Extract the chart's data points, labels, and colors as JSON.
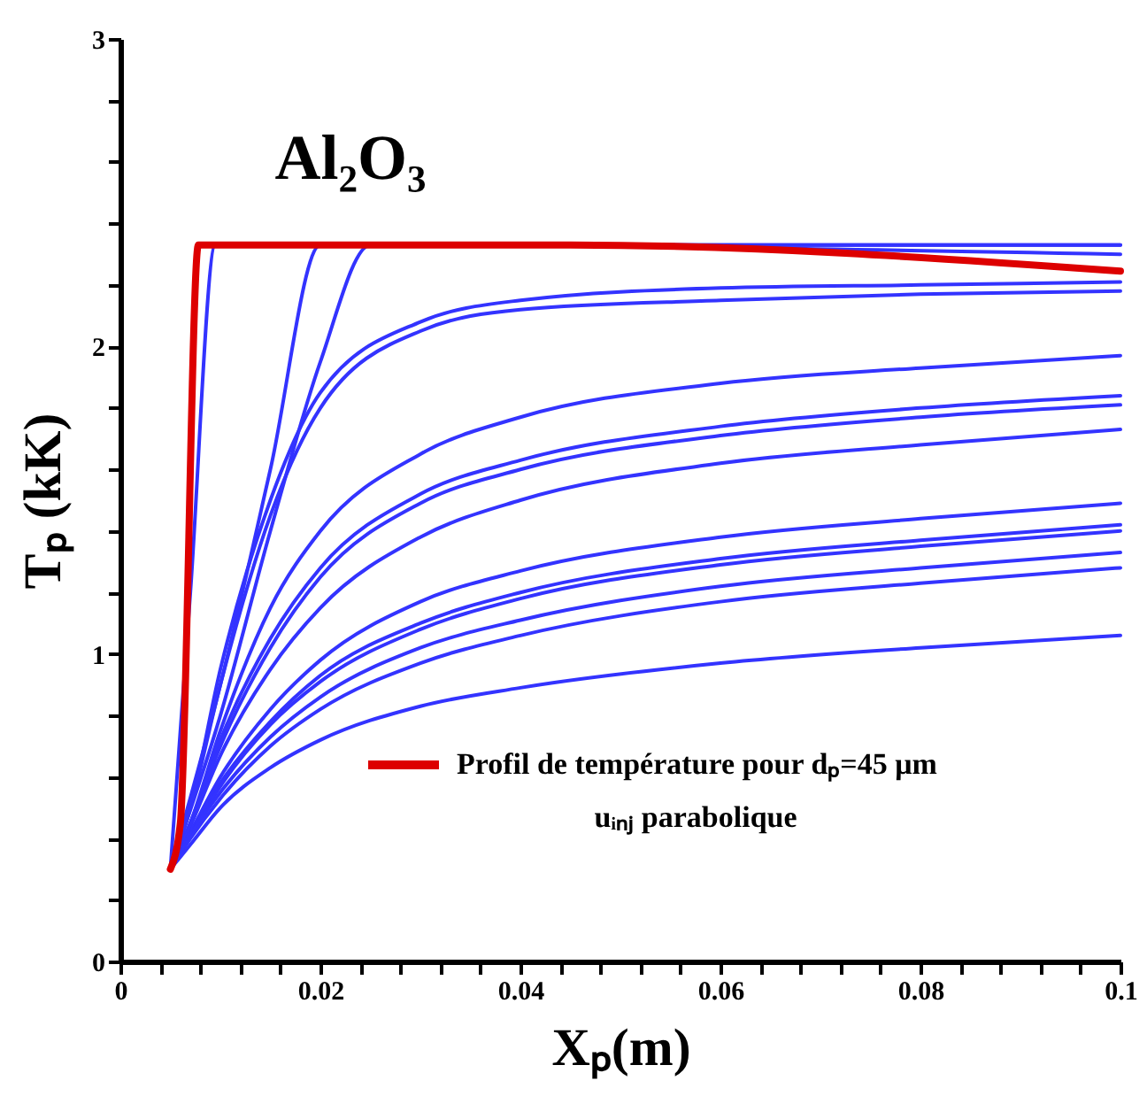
{
  "chart_data": {
    "type": "line",
    "title": "Al₂O₃",
    "xlabel": "Xₚ(m)",
    "ylabel": "Tₚ (kK)",
    "xlim": [
      0,
      0.1
    ],
    "ylim": [
      0,
      3
    ],
    "xticks": [
      0,
      {
        "value": 0.004,
        "label": null
      },
      {
        "value": 0.008,
        "label": null
      },
      {
        "value": 0.012,
        "label": null
      },
      {
        "value": 0.016,
        "label": null
      },
      0.02,
      {
        "value": 0.024,
        "label": null
      },
      {
        "value": 0.028,
        "label": null
      },
      {
        "value": 0.032,
        "label": null
      },
      {
        "value": 0.036,
        "label": null
      },
      0.04,
      {
        "value": 0.044,
        "label": null
      },
      {
        "value": 0.048,
        "label": null
      },
      {
        "value": 0.052,
        "label": null
      },
      {
        "value": 0.056,
        "label": null
      },
      0.06,
      {
        "value": 0.064,
        "label": null
      },
      {
        "value": 0.068,
        "label": null
      },
      {
        "value": 0.072,
        "label": null
      },
      {
        "value": 0.076,
        "label": null
      },
      0.08,
      {
        "value": 0.084,
        "label": null
      },
      {
        "value": 0.088,
        "label": null
      },
      {
        "value": 0.092,
        "label": null
      },
      {
        "value": 0.096,
        "label": null
      },
      0.1
    ],
    "yticks": [
      0,
      {
        "value": 0.2,
        "label": null
      },
      {
        "value": 0.4,
        "label": null
      },
      {
        "value": 0.6,
        "label": null
      },
      {
        "value": 0.8,
        "label": null
      },
      1,
      {
        "value": 1.2,
        "label": null
      },
      {
        "value": 1.4,
        "label": null
      },
      {
        "value": 1.6,
        "label": null
      },
      {
        "value": 1.8,
        "label": null
      },
      2,
      {
        "value": 2.2,
        "label": null
      },
      {
        "value": 2.4,
        "label": null
      },
      {
        "value": 2.6,
        "label": null
      },
      {
        "value": 2.8,
        "label": null
      },
      3
    ],
    "grid": false,
    "legend": "bottom right",
    "marker": "none",
    "line_style": "solid",
    "annotations": [
      "uᵢₙⱼ parabolique"
    ],
    "x": [
      0.005,
      0.007,
      0.01,
      0.015,
      0.02,
      0.03,
      0.04,
      0.06,
      0.08,
      0.1
    ],
    "series": [
      {
        "color": "#3333ff",
        "x": [
          0.005,
          0.007,
          0.0095,
          0.1
        ],
        "values": [
          0.3,
          1.2,
          2.33,
          2.33
        ]
      },
      {
        "color": "#3333ff",
        "x": [
          0.005,
          0.01,
          0.015,
          0.02,
          0.1
        ],
        "values": [
          0.3,
          0.9,
          1.6,
          2.33,
          2.33
        ]
      },
      {
        "color": "#3333ff",
        "x": [
          0.005,
          0.01,
          0.015,
          0.02,
          0.025,
          0.1
        ],
        "values": [
          0.3,
          0.8,
          1.4,
          1.95,
          2.33,
          2.3
        ]
      },
      {
        "color": "#3333ff",
        "values": [
          0.3,
          0.5,
          0.95,
          1.5,
          1.85,
          2.08,
          2.15,
          2.19,
          2.2,
          2.21
        ]
      },
      {
        "color": "#3333ff",
        "values": [
          0.3,
          0.5,
          0.9,
          1.45,
          1.8,
          2.05,
          2.12,
          2.15,
          2.17,
          2.18
        ]
      },
      {
        "color": "#3333ff",
        "values": [
          0.3,
          0.45,
          0.75,
          1.15,
          1.4,
          1.65,
          1.77,
          1.88,
          1.93,
          1.97
        ]
      },
      {
        "color": "#3333ff",
        "values": [
          0.3,
          0.45,
          0.72,
          1.05,
          1.28,
          1.52,
          1.63,
          1.74,
          1.8,
          1.84
        ]
      },
      {
        "color": "#3333ff",
        "values": [
          0.3,
          0.45,
          0.7,
          1.02,
          1.25,
          1.49,
          1.6,
          1.71,
          1.77,
          1.81
        ]
      },
      {
        "color": "#3333ff",
        "values": [
          0.3,
          0.44,
          0.67,
          0.95,
          1.15,
          1.38,
          1.5,
          1.62,
          1.68,
          1.73
        ]
      },
      {
        "color": "#3333ff",
        "values": [
          0.3,
          0.42,
          0.6,
          0.82,
          0.98,
          1.17,
          1.27,
          1.38,
          1.44,
          1.49
        ]
      },
      {
        "color": "#3333ff",
        "values": [
          0.3,
          0.42,
          0.58,
          0.78,
          0.93,
          1.1,
          1.2,
          1.31,
          1.37,
          1.42
        ]
      },
      {
        "color": "#3333ff",
        "values": [
          0.3,
          0.41,
          0.57,
          0.77,
          0.91,
          1.08,
          1.18,
          1.29,
          1.35,
          1.4
        ]
      },
      {
        "color": "#3333ff",
        "values": [
          0.3,
          0.41,
          0.55,
          0.73,
          0.86,
          1.02,
          1.11,
          1.22,
          1.28,
          1.33
        ]
      },
      {
        "color": "#3333ff",
        "values": [
          0.3,
          0.4,
          0.53,
          0.7,
          0.82,
          0.97,
          1.06,
          1.17,
          1.23,
          1.28
        ]
      },
      {
        "color": "#3333ff",
        "values": [
          0.3,
          0.38,
          0.5,
          0.63,
          0.72,
          0.83,
          0.89,
          0.97,
          1.02,
          1.06
        ]
      },
      {
        "name": "Profil de température pour dₚ=45 μm",
        "color": "#dd0000",
        "x": [
          0.005,
          0.006,
          0.0078,
          0.045,
          0.1
        ],
        "values": [
          0.3,
          0.45,
          2.33,
          2.33,
          2.245
        ]
      }
    ]
  }
}
